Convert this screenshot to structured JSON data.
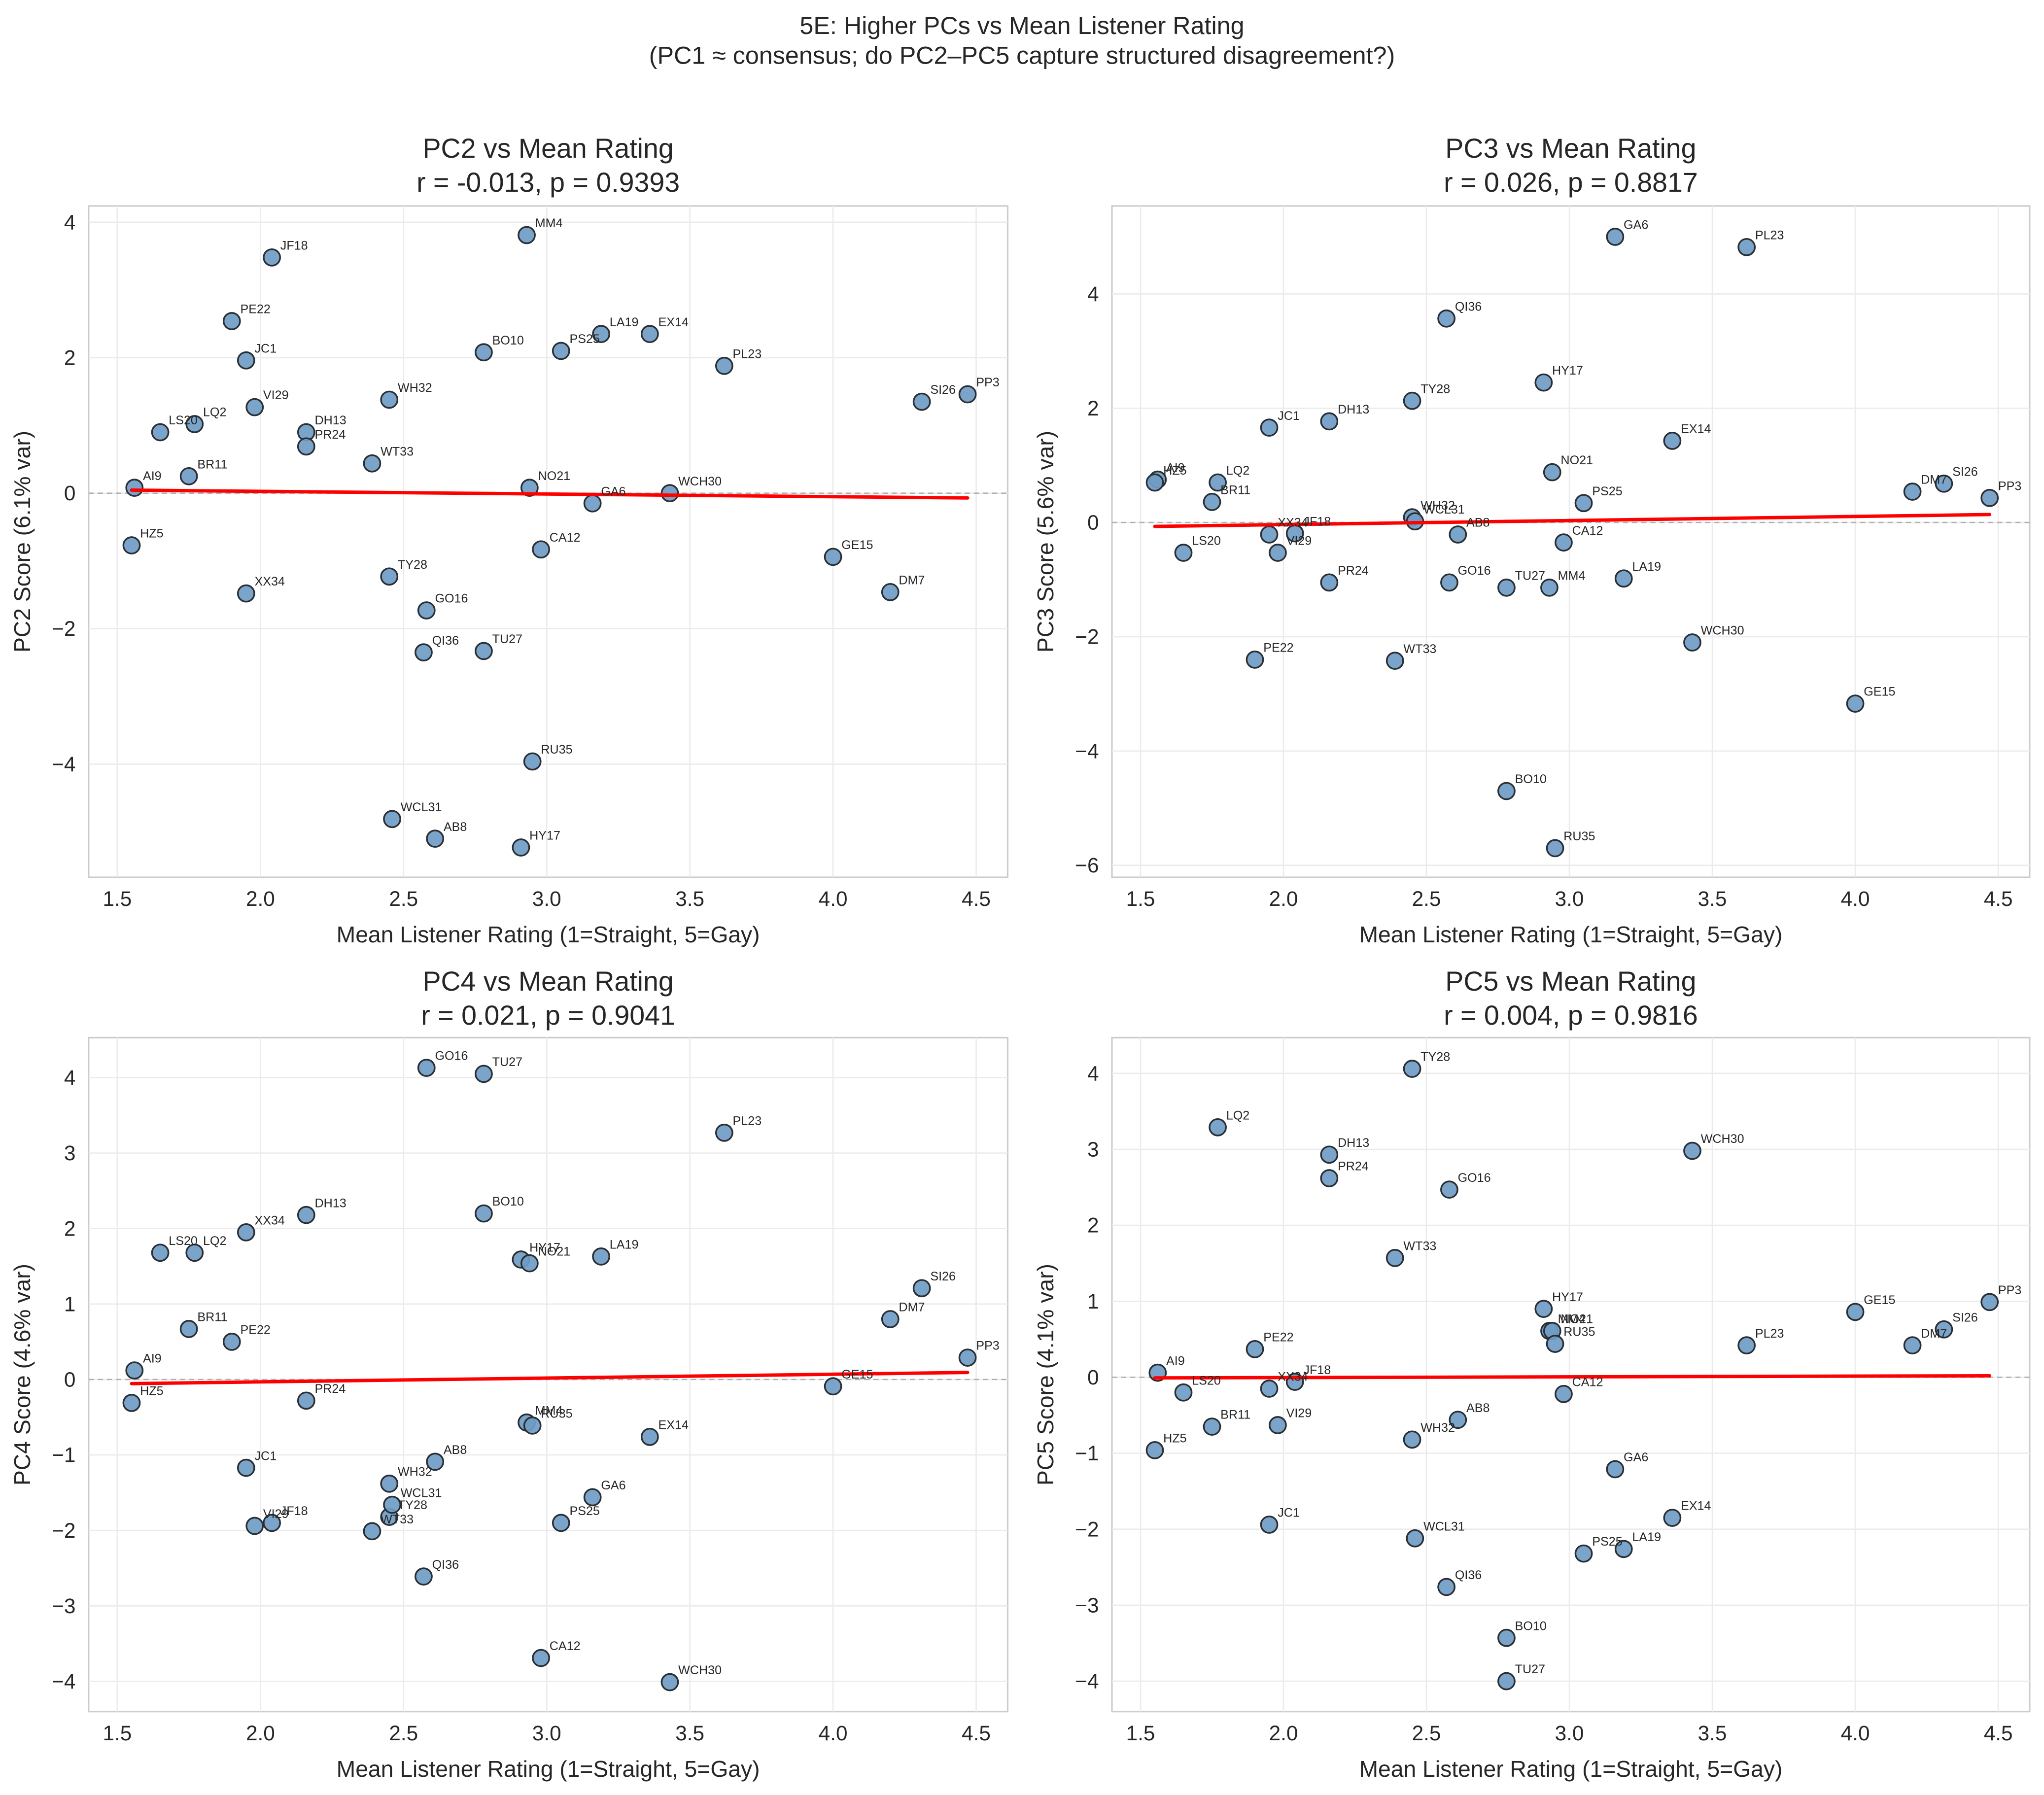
{
  "chart_data": {
    "type": "scatter",
    "title": "5E: Higher PCs vs Mean Listener Rating",
    "subtitle": "(PC1 ≈ consensus; do PC2–PC5 capture structured disagreement?)",
    "colors": {
      "points": "#6f9cc6",
      "point_edge": "#2b2f33",
      "fit_line": "#ff0000",
      "zero_line": "#b0b0b0"
    },
    "speakers": [
      "AI9",
      "HZ5",
      "LS20",
      "BR11",
      "LQ2",
      "PE22",
      "XX34",
      "JC1",
      "VI29",
      "JF18",
      "DH13",
      "PR24",
      "WT33",
      "TY28",
      "WH32",
      "WCL31",
      "QI36",
      "GO16",
      "AB8",
      "BO10",
      "TU27",
      "HY17",
      "MM4",
      "NO21",
      "RU35",
      "CA12",
      "PS25",
      "GA6",
      "LA19",
      "EX14",
      "WCH30",
      "PL23",
      "GE15",
      "DM7",
      "SI26",
      "PP3"
    ],
    "x": [
      1.56,
      1.55,
      1.65,
      1.75,
      1.77,
      1.9,
      1.95,
      1.95,
      1.98,
      2.04,
      2.16,
      2.16,
      2.39,
      2.45,
      2.45,
      2.46,
      2.57,
      2.58,
      2.61,
      2.78,
      2.78,
      2.91,
      2.93,
      2.94,
      2.95,
      2.98,
      3.05,
      3.16,
      3.19,
      3.36,
      3.43,
      3.62,
      4.0,
      4.2,
      4.31,
      4.47
    ],
    "xlabel": "Mean Listener Rating (1=Straight, 5=Gay)",
    "xlim": [
      1.4,
      4.61
    ],
    "xticks": [
      "1.5",
      "2.0",
      "2.5",
      "3.0",
      "3.5",
      "4.0",
      "4.5"
    ],
    "xtick_values": [
      1.5,
      2.0,
      2.5,
      3.0,
      3.5,
      4.0,
      4.5
    ],
    "panels": [
      {
        "name": "PC2",
        "title": "PC2 vs Mean Rating",
        "stats": "r = -0.013, p = 0.9393",
        "ylabel": "PC2 Score (6.1% var)",
        "ylim": [
          -5.67,
          4.24
        ],
        "yticks": [
          "−4",
          "−2",
          "0",
          "2",
          "4"
        ],
        "ytick_values": [
          -4,
          -2,
          0,
          2,
          4
        ],
        "y": [
          0.08,
          -0.77,
          0.9,
          0.25,
          1.02,
          2.54,
          -1.48,
          1.96,
          1.27,
          3.48,
          0.9,
          0.69,
          0.44,
          -1.23,
          1.38,
          -4.81,
          -2.35,
          -1.73,
          -5.1,
          2.08,
          -2.33,
          -5.23,
          3.81,
          0.08,
          -3.96,
          -0.83,
          2.1,
          -0.15,
          2.35,
          2.35,
          0.0,
          1.88,
          -0.94,
          -1.46,
          1.35,
          1.46
        ]
      },
      {
        "name": "PC3",
        "title": "PC3 vs Mean Rating",
        "stats": "r = 0.026, p = 0.8817",
        "ylabel": "PC3 Score (5.6% var)",
        "ylim": [
          -6.21,
          5.54
        ],
        "yticks": [
          "−6",
          "−4",
          "−2",
          "0",
          "2",
          "4"
        ],
        "ytick_values": [
          -6,
          -4,
          -2,
          0,
          2,
          4
        ],
        "y": [
          0.75,
          0.7,
          -0.53,
          0.36,
          0.7,
          -2.4,
          -0.21,
          1.66,
          -0.53,
          -0.19,
          1.77,
          -1.05,
          -2.42,
          2.13,
          0.09,
          0.02,
          3.57,
          -1.05,
          -0.21,
          -4.7,
          -1.14,
          2.45,
          -1.14,
          0.88,
          -5.7,
          -0.35,
          0.34,
          5.0,
          -0.98,
          1.43,
          -2.1,
          4.82,
          -3.17,
          0.54,
          0.68,
          0.43
        ]
      },
      {
        "name": "PC4",
        "title": "PC4 vs Mean Rating",
        "stats": "r = 0.021, p = 0.9041",
        "ylabel": "PC4 Score (4.6% var)",
        "ylim": [
          -4.4,
          4.53
        ],
        "yticks": [
          "−4",
          "−3",
          "−2",
          "−1",
          "0",
          "1",
          "2",
          "3",
          "4"
        ],
        "ytick_values": [
          -4,
          -3,
          -2,
          -1,
          0,
          1,
          2,
          3,
          4
        ],
        "y": [
          0.12,
          -0.31,
          1.68,
          0.67,
          1.68,
          0.5,
          1.95,
          -1.17,
          -1.94,
          -1.9,
          2.18,
          -0.28,
          -2.01,
          -1.82,
          -1.38,
          -1.66,
          -2.61,
          4.13,
          -1.09,
          2.2,
          4.05,
          1.59,
          -0.57,
          1.54,
          -0.61,
          -3.69,
          -1.9,
          -1.56,
          1.63,
          -0.76,
          -4.01,
          3.27,
          -0.09,
          0.8,
          1.21,
          0.29
        ]
      },
      {
        "name": "PC5",
        "title": "PC5 vs Mean Rating",
        "stats": "r = 0.004, p = 0.9816",
        "ylabel": "PC5 Score (4.1% var)",
        "ylim": [
          -4.4,
          4.47
        ],
        "yticks": [
          "−4",
          "−3",
          "−2",
          "−1",
          "0",
          "1",
          "2",
          "3",
          "4"
        ],
        "ytick_values": [
          -4,
          -3,
          -2,
          -1,
          0,
          1,
          2,
          3,
          4
        ],
        "y": [
          0.06,
          -0.96,
          -0.2,
          -0.65,
          3.29,
          0.37,
          -0.15,
          -1.94,
          -0.63,
          -0.06,
          2.93,
          2.62,
          1.57,
          4.06,
          -0.82,
          -2.12,
          -2.76,
          2.47,
          -0.56,
          -3.43,
          -4.0,
          0.9,
          0.61,
          0.61,
          0.44,
          -0.22,
          -2.32,
          -1.21,
          -2.26,
          -1.85,
          2.98,
          0.42,
          0.86,
          0.42,
          0.63,
          0.99
        ]
      }
    ]
  }
}
